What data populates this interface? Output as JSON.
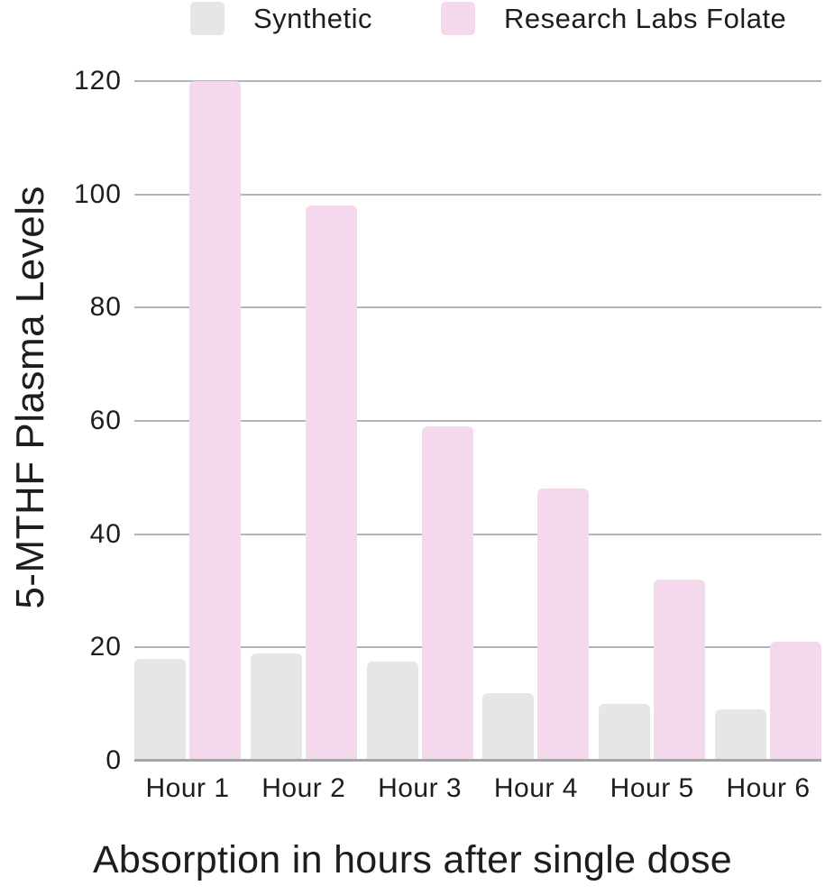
{
  "chart_data": {
    "type": "bar",
    "title": "",
    "categories": [
      "Hour 1",
      "Hour 2",
      "Hour 3",
      "Hour 4",
      "Hour 5",
      "Hour 6"
    ],
    "series": [
      {
        "name": "Synthetic",
        "color": "#e7e6e7",
        "values": [
          18,
          19,
          17.5,
          12,
          10,
          9
        ]
      },
      {
        "name": "Research Labs Folate",
        "color": "#f4d9ec",
        "values": [
          120,
          98,
          59,
          48,
          32,
          21
        ]
      }
    ],
    "xlabel": "Absorption in hours after single dose",
    "ylabel": "5-MTHF Plasma Levels",
    "yticks": [
      0,
      20,
      40,
      60,
      80,
      100,
      120
    ],
    "ylim": [
      0,
      120
    ],
    "grid": true,
    "legend_position": "top"
  },
  "colors": {
    "gridline": "#b5b3b7",
    "baseline": "#a6a4a8",
    "text": "#1d1d1d",
    "background": "#ffffff"
  }
}
